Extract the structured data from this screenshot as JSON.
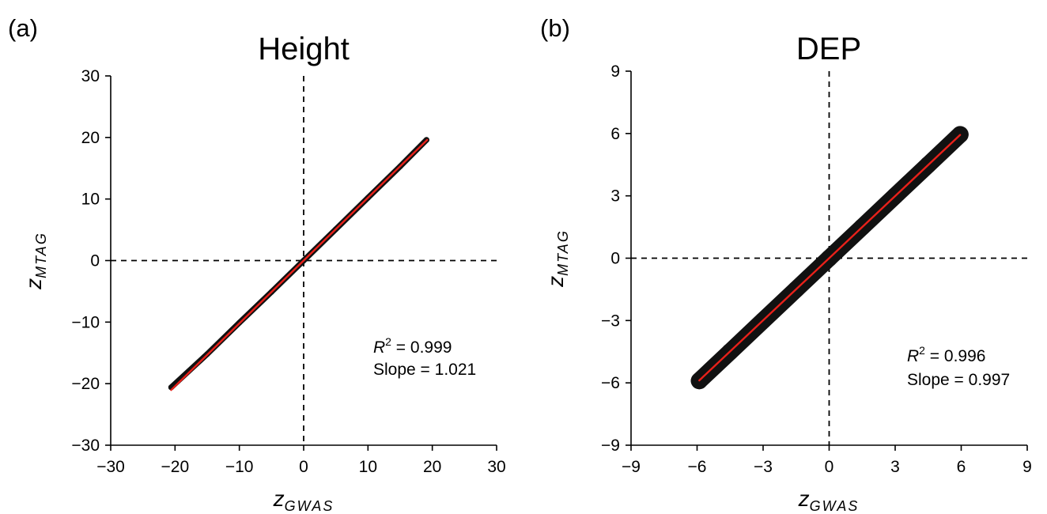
{
  "chart_data": [
    {
      "type": "scatter",
      "panel_label": "(a)",
      "title": "Height",
      "xlabel": "z",
      "xlabel_sub": "GWAS",
      "ylabel": "z",
      "ylabel_sub": "MTAG",
      "xlim": [
        -30,
        30
      ],
      "ylim": [
        -30,
        30
      ],
      "xticks": [
        "−30",
        "−20",
        "−10",
        "0",
        "10",
        "20",
        "30"
      ],
      "xtick_values": [
        -30,
        -20,
        -10,
        0,
        10,
        20,
        30
      ],
      "yticks": [
        "30",
        "20",
        "10",
        "0",
        "−10",
        "−20",
        "−30"
      ],
      "ytick_values": [
        30,
        20,
        10,
        0,
        -10,
        -20,
        -30
      ],
      "grid": false,
      "reference_lines": {
        "x": 0,
        "y": 0,
        "style": "dashed"
      },
      "series": [
        {
          "points": [
            [
              -20.6,
              -20.6
            ],
            [
              -15,
              -15.2
            ],
            [
              -10,
              -10.1
            ],
            [
              -5,
              -5.1
            ],
            [
              0,
              0
            ],
            [
              5,
              5.1
            ],
            [
              10,
              10.2
            ],
            [
              15,
              15.3
            ],
            [
              19.1,
              19.6
            ]
          ],
          "color": "#000000",
          "spread": 0.4
        }
      ],
      "fit_line": {
        "slope": 1.021,
        "intercept": 0,
        "x_range": [
          -20.6,
          19.2
        ],
        "color": "#e8211a"
      },
      "annotations": {
        "r2_symbol": "R",
        "r2_exp": "2",
        "r2_value": " = 0.999",
        "slope_text": "Slope = 1.021"
      }
    },
    {
      "type": "scatter",
      "panel_label": "(b)",
      "title": "DEP",
      "xlabel": "z",
      "xlabel_sub": "GWAS",
      "ylabel": "z",
      "ylabel_sub": "MTAG",
      "xlim": [
        -9,
        9
      ],
      "ylim": [
        -9,
        9
      ],
      "xticks": [
        "−9",
        "−6",
        "−3",
        "0",
        "3",
        "6",
        "9"
      ],
      "xtick_values": [
        -9,
        -6,
        -3,
        0,
        3,
        6,
        9
      ],
      "yticks": [
        "9",
        "6",
        "3",
        "0",
        "−3",
        "−6",
        "−9"
      ],
      "ytick_values": [
        9,
        6,
        3,
        0,
        -3,
        -6,
        -9
      ],
      "grid": false,
      "reference_lines": {
        "x": 0,
        "y": 0,
        "style": "dashed"
      },
      "series": [
        {
          "points": [
            [
              -5.9,
              -5.9
            ],
            [
              -4.5,
              -4.5
            ],
            [
              -3,
              -3
            ],
            [
              -1.5,
              -1.5
            ],
            [
              0,
              0
            ],
            [
              1.5,
              1.5
            ],
            [
              3,
              3
            ],
            [
              4.5,
              4.5
            ],
            [
              5.95,
              5.95
            ]
          ],
          "color": "#000000",
          "spread": 0.35
        }
      ],
      "fit_line": {
        "slope": 0.997,
        "intercept": 0,
        "x_range": [
          -5.9,
          5.95
        ],
        "color": "#e8211a"
      },
      "annotations": {
        "r2_symbol": "R",
        "r2_exp": "2",
        "r2_value": " = 0.996",
        "slope_text": "Slope = 0.997"
      }
    }
  ]
}
